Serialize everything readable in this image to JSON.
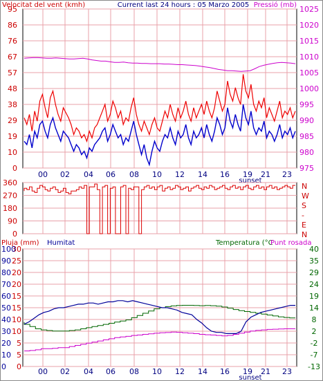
{
  "header": {
    "left_title": "Velocitat del vent (kmh)",
    "center_title": "Current last 24 hours : 05 Marzo 2005",
    "right_title": "Pressió (mb)"
  },
  "panel2": {
    "direction_labels": [
      "N",
      "W",
      "S",
      "-",
      "E",
      "N"
    ]
  },
  "panel3": {
    "title_rain": "Pluja (mm)",
    "title_humidity": "Humitat",
    "title_temp": "Temperatura (°C",
    "title_dewpoint": "Punt rosada"
  },
  "sunset_label": "sunset",
  "colors": {
    "wind_avg": "#0000cc",
    "wind_gust": "#ee0000",
    "pressure": "#cc00cc",
    "direction": "#dd0000",
    "humidity": "#000099",
    "temperature": "#006600",
    "dewpoint": "#cc00cc",
    "grid": "#e8a0a8",
    "axis_red": "#cc0000",
    "axis_magenta": "#cc00cc",
    "axis_green": "#006600",
    "axis_navy": "#000099"
  },
  "chart_data": [
    {
      "type": "line",
      "x_ticks": [
        "00",
        "02",
        "04",
        "06",
        "08",
        "10",
        "12",
        "14",
        "16",
        "19",
        "21",
        "23"
      ],
      "y_left_ticks": [
        "95",
        "86",
        "76",
        "67",
        "57",
        "48",
        "38",
        "29",
        "19",
        "10",
        "0"
      ],
      "y_left_range": [
        0,
        95
      ],
      "y_right_ticks": [
        "1025",
        "1020",
        "1015",
        "1010",
        "1005",
        "1000",
        "995",
        "990",
        "985",
        "980",
        "975"
      ],
      "y_right_range": [
        975,
        1025
      ],
      "series": [
        {
          "role": "wind_gust",
          "values": [
            30,
            26,
            32,
            22,
            34,
            28,
            40,
            44,
            36,
            30,
            42,
            46,
            38,
            32,
            28,
            36,
            33,
            30,
            26,
            20,
            24,
            22,
            18,
            20,
            16,
            22,
            18,
            24,
            26,
            30,
            34,
            38,
            28,
            32,
            40,
            36,
            30,
            34,
            26,
            30,
            28,
            36,
            42,
            32,
            26,
            22,
            28,
            24,
            20,
            26,
            30,
            24,
            22,
            28,
            34,
            30,
            38,
            32,
            28,
            36,
            30,
            34,
            40,
            32,
            28,
            36,
            30,
            34,
            38,
            32,
            40,
            34,
            30,
            36,
            46,
            40,
            34,
            38,
            52,
            44,
            40,
            48,
            42,
            38,
            56,
            46,
            42,
            50,
            38,
            34,
            40,
            36,
            42,
            30,
            36,
            32,
            28,
            34,
            40,
            30,
            34,
            32,
            36,
            30,
            34
          ]
        },
        {
          "role": "wind_avg",
          "values": [
            16,
            14,
            20,
            12,
            22,
            18,
            26,
            28,
            22,
            18,
            26,
            30,
            24,
            20,
            16,
            22,
            20,
            18,
            14,
            10,
            14,
            12,
            8,
            10,
            6,
            12,
            10,
            14,
            16,
            18,
            22,
            24,
            16,
            20,
            26,
            22,
            18,
            20,
            14,
            18,
            16,
            22,
            28,
            20,
            14,
            8,
            14,
            6,
            2,
            10,
            16,
            12,
            10,
            16,
            20,
            18,
            24,
            18,
            14,
            22,
            18,
            20,
            26,
            18,
            14,
            22,
            18,
            20,
            24,
            18,
            26,
            20,
            16,
            22,
            30,
            26,
            20,
            24,
            36,
            28,
            24,
            32,
            26,
            22,
            38,
            30,
            26,
            34,
            24,
            20,
            24,
            22,
            28,
            18,
            22,
            20,
            16,
            20,
            26,
            18,
            22,
            20,
            24,
            18,
            22
          ]
        },
        {
          "role": "pressure",
          "values": [
            1009.5,
            1009.6,
            1009.7,
            1009.7,
            1009.6,
            1009.5,
            1009.5,
            1009.6,
            1009.5,
            1009.4,
            1009.3,
            1009.3,
            1009.4,
            1009.5,
            1009.3,
            1009.0,
            1008.8,
            1008.6,
            1008.6,
            1008.4,
            1008.2,
            1008.2,
            1008.3,
            1008.1,
            1008.0,
            1008.0,
            1007.9,
            1007.9,
            1007.8,
            1007.8,
            1007.8,
            1007.7,
            1007.7,
            1007.6,
            1007.5,
            1007.5,
            1007.4,
            1007.3,
            1007.2,
            1007.0,
            1006.8,
            1006.6,
            1006.3,
            1006.0,
            1005.8,
            1005.6,
            1005.6,
            1005.5,
            1005.4,
            1005.5,
            1005.6,
            1006.2,
            1006.9,
            1007.3,
            1007.6,
            1007.9,
            1008.1,
            1008.2,
            1008.1,
            1008.0,
            1007.8
          ]
        }
      ]
    },
    {
      "type": "line",
      "x_ticks": [
        "00",
        "02",
        "04",
        "06",
        "08",
        "10",
        "12",
        "14",
        "16",
        "19",
        "21",
        "23"
      ],
      "y_ticks": [
        "360",
        "270",
        "180",
        "90",
        "0"
      ],
      "y_range": [
        0,
        360
      ],
      "series": [
        {
          "role": "direction",
          "values": [
            300,
            320,
            310,
            330,
            300,
            290,
            320,
            340,
            330,
            310,
            300,
            320,
            330,
            310,
            290,
            300,
            320,
            290,
            280,
            300,
            300,
            310,
            330,
            320,
            340,
            0,
            330,
            330,
            350,
            310,
            0,
            330,
            340,
            0,
            320,
            330,
            0,
            0,
            330,
            340,
            0,
            320,
            310,
            330,
            330,
            0,
            310,
            330,
            340,
            320,
            330,
            310,
            330,
            340,
            300,
            320,
            330,
            310,
            320,
            340,
            330,
            310,
            320,
            330,
            300,
            320,
            330,
            340,
            320,
            310,
            330,
            320,
            340,
            330,
            310,
            320,
            330,
            340,
            320,
            310,
            330,
            340,
            320,
            330,
            310,
            330,
            340,
            320,
            310,
            330,
            340,
            320,
            330,
            310,
            330,
            340,
            320,
            330,
            310,
            320,
            330,
            340,
            330,
            320,
            340
          ]
        }
      ]
    },
    {
      "type": "line",
      "x_ticks": [
        "00",
        "02",
        "04",
        "06",
        "08",
        "10",
        "12",
        "14",
        "16",
        "19",
        "21",
        "23"
      ],
      "y_rain_ticks": [
        "30",
        "25",
        "20",
        "20",
        "15",
        "15",
        "10",
        "10",
        "5",
        "5",
        "0"
      ],
      "y_humidity_ticks": [
        "100",
        "90",
        "80",
        "70",
        "60",
        "50",
        "40",
        "30",
        "20",
        "10",
        "0"
      ],
      "y_humidity_range": [
        0,
        100
      ],
      "y_temp_ticks": [
        "40",
        "35",
        "29",
        "24",
        "19",
        "14",
        "8",
        "2",
        "-2",
        "-7",
        "-13"
      ],
      "y_temp_range": [
        -13,
        40
      ],
      "series": [
        {
          "role": "humidity",
          "values": [
            36,
            38,
            41,
            44,
            46,
            47,
            49,
            50,
            50,
            51,
            52,
            53,
            53,
            54,
            54,
            53,
            54,
            55,
            55,
            56,
            56,
            55,
            56,
            55,
            54,
            53,
            52,
            51,
            50,
            50,
            49,
            48,
            46,
            45,
            44,
            40,
            37,
            33,
            30,
            29,
            29,
            28,
            28,
            28,
            30,
            38,
            42,
            44,
            46,
            47,
            48,
            49,
            50,
            51,
            52,
            52
          ]
        },
        {
          "role": "temperature",
          "values": [
            7,
            6,
            5,
            4,
            3.5,
            3.2,
            3,
            3,
            3,
            3.2,
            3.5,
            4,
            4.5,
            5,
            5.5,
            6,
            6.5,
            7,
            7.5,
            8,
            9,
            10,
            11,
            12,
            13,
            13.5,
            14,
            14.3,
            14.5,
            14.6,
            14.6,
            14.5,
            14.4,
            14.5,
            14.4,
            14.2,
            13.8,
            13.3,
            12.7,
            12.2,
            11.8,
            11.4,
            11,
            10.6,
            10.2,
            9.8,
            9.4,
            9.1,
            8.9
          ]
        },
        {
          "role": "dewpoint",
          "values": [
            -6,
            -6,
            -5.8,
            -5.5,
            -5,
            -5,
            -4.8,
            -4.5,
            -4.5,
            -4,
            -3.5,
            -3,
            -2.5,
            -2,
            -1.5,
            -1,
            -0.5,
            0,
            0.3,
            0.6,
            1,
            1.2,
            1.5,
            1.7,
            2,
            2.2,
            2.3,
            2.5,
            2.4,
            2.2,
            2,
            1.8,
            1.5,
            1.3,
            1.2,
            1,
            0.8,
            1,
            1.5,
            2,
            2.5,
            3,
            3.3,
            3.5,
            3.7,
            3.8,
            3.9,
            4,
            4
          ]
        }
      ]
    }
  ]
}
